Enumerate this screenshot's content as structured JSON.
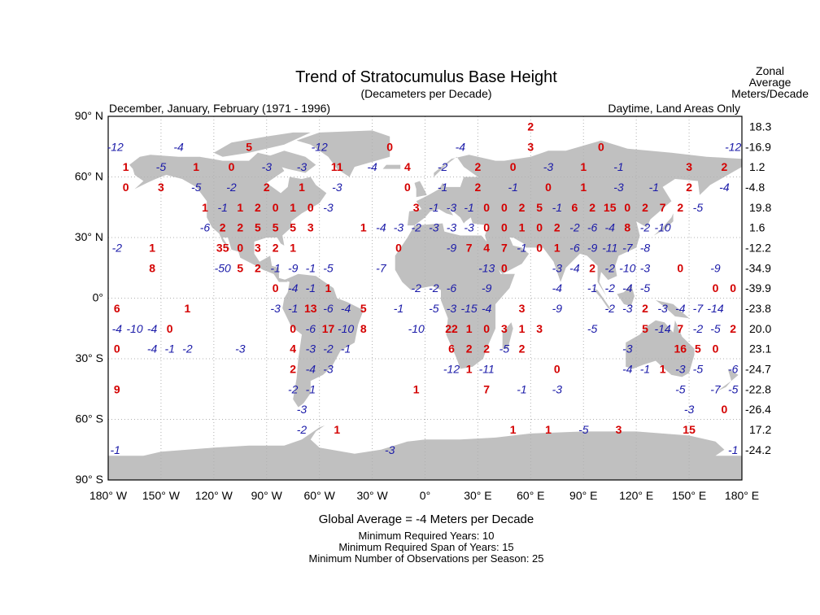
{
  "header": {
    "title": "Trend of Stratocumulus Base Height",
    "subtitle": "(Decameters per Decade)",
    "period": "December, January, February (1971 - 1996)",
    "scope": "Daytime, Land Areas Only",
    "zonal_header": [
      "Zonal",
      "Average",
      "Meters/Decade"
    ]
  },
  "footer": {
    "global_average": "Global Average = -4 Meters per Decade",
    "min_years": "Minimum Required Years: 10",
    "min_span": "Minimum Required Span of Years: 15",
    "min_obs": "Minimum Number of Observations per Season: 25"
  },
  "chart_data": {
    "type": "heatmap",
    "title": "Trend of Stratocumulus Base Height",
    "units": "(Decameters per Decade)",
    "xlim": [
      -180,
      180
    ],
    "ylim": [
      -90,
      90
    ],
    "grid": true,
    "x_ticks": [
      {
        "value": -180,
        "label": "180° W"
      },
      {
        "value": -150,
        "label": "150° W"
      },
      {
        "value": -120,
        "label": "120° W"
      },
      {
        "value": -90,
        "label": "90° W"
      },
      {
        "value": -60,
        "label": "60° W"
      },
      {
        "value": -30,
        "label": "30° W"
      },
      {
        "value": 0,
        "label": "0°"
      },
      {
        "value": 30,
        "label": "30° E"
      },
      {
        "value": 60,
        "label": "60° E"
      },
      {
        "value": 90,
        "label": "90° E"
      },
      {
        "value": 120,
        "label": "120° E"
      },
      {
        "value": 150,
        "label": "150° E"
      },
      {
        "value": 180,
        "label": "180° E"
      }
    ],
    "y_ticks": [
      {
        "value": 90,
        "label": "90° N"
      },
      {
        "value": 60,
        "label": "60° N"
      },
      {
        "value": 30,
        "label": "30° N"
      },
      {
        "value": 0,
        "label": "0°"
      },
      {
        "value": -30,
        "label": "30° S"
      },
      {
        "value": -60,
        "label": "60° S"
      },
      {
        "value": -90,
        "label": "90° S"
      }
    ],
    "colors": {
      "positive": "#d40000",
      "negative": "#1a1aa8",
      "land": "#c0c0c0",
      "grid": "#b0b0b0"
    },
    "rows": [
      {
        "lat": 85,
        "zonal_average": "18.3",
        "cells": [
          [
            60,
            2
          ]
        ]
      },
      {
        "lat": 75,
        "zonal_average": "-16.9",
        "cells": [
          [
            -176,
            -12
          ],
          [
            -140,
            -4
          ],
          [
            -100,
            5
          ],
          [
            -60,
            -12
          ],
          [
            -20,
            0
          ],
          [
            20,
            -4
          ],
          [
            60,
            3
          ],
          [
            100,
            0
          ],
          [
            175,
            -12
          ]
        ]
      },
      {
        "lat": 65,
        "zonal_average": "1.2",
        "cells": [
          [
            -170,
            1
          ],
          [
            -150,
            -5
          ],
          [
            -130,
            1
          ],
          [
            -110,
            0
          ],
          [
            -90,
            -3
          ],
          [
            -70,
            -3
          ],
          [
            -50,
            11
          ],
          [
            -30,
            -4
          ],
          [
            -10,
            4
          ],
          [
            10,
            -2
          ],
          [
            30,
            2
          ],
          [
            50,
            0
          ],
          [
            70,
            -3
          ],
          [
            90,
            1
          ],
          [
            110,
            -1
          ],
          [
            150,
            3
          ],
          [
            170,
            2
          ]
        ]
      },
      {
        "lat": 55,
        "zonal_average": "-4.8",
        "cells": [
          [
            -170,
            0
          ],
          [
            -150,
            3
          ],
          [
            -130,
            -5
          ],
          [
            -110,
            -2
          ],
          [
            -90,
            2
          ],
          [
            -70,
            1
          ],
          [
            -50,
            -3
          ],
          [
            -10,
            0
          ],
          [
            10,
            -1
          ],
          [
            30,
            2
          ],
          [
            50,
            -1
          ],
          [
            70,
            0
          ],
          [
            90,
            1
          ],
          [
            110,
            -3
          ],
          [
            130,
            -1
          ],
          [
            150,
            2
          ],
          [
            170,
            -4
          ]
        ]
      },
      {
        "lat": 45,
        "zonal_average": "19.8",
        "cells": [
          [
            -125,
            1
          ],
          [
            -115,
            -1
          ],
          [
            -105,
            1
          ],
          [
            -95,
            2
          ],
          [
            -85,
            0
          ],
          [
            -75,
            1
          ],
          [
            -65,
            0
          ],
          [
            -55,
            -3
          ],
          [
            -5,
            3
          ],
          [
            5,
            -1
          ],
          [
            15,
            -3
          ],
          [
            25,
            -1
          ],
          [
            35,
            0
          ],
          [
            45,
            0
          ],
          [
            55,
            2
          ],
          [
            65,
            5
          ],
          [
            75,
            -1
          ],
          [
            85,
            6
          ],
          [
            95,
            2
          ],
          [
            105,
            15
          ],
          [
            115,
            0
          ],
          [
            125,
            2
          ],
          [
            135,
            7
          ],
          [
            145,
            2
          ],
          [
            155,
            -5
          ]
        ]
      },
      {
        "lat": 35,
        "zonal_average": "1.6",
        "cells": [
          [
            -125,
            -6
          ],
          [
            -115,
            2
          ],
          [
            -105,
            2
          ],
          [
            -95,
            5
          ],
          [
            -85,
            5
          ],
          [
            -75,
            5
          ],
          [
            -65,
            3
          ],
          [
            -35,
            1
          ],
          [
            -25,
            -4
          ],
          [
            -15,
            -3
          ],
          [
            -5,
            -2
          ],
          [
            5,
            -3
          ],
          [
            15,
            -3
          ],
          [
            25,
            -3
          ],
          [
            35,
            0
          ],
          [
            45,
            0
          ],
          [
            55,
            1
          ],
          [
            65,
            0
          ],
          [
            75,
            2
          ],
          [
            85,
            -2
          ],
          [
            95,
            -6
          ],
          [
            105,
            -4
          ],
          [
            115,
            8
          ],
          [
            125,
            -2
          ],
          [
            135,
            -10
          ]
        ]
      },
      {
        "lat": 25,
        "zonal_average": "-12.2",
        "cells": [
          [
            -175,
            -2
          ],
          [
            -155,
            1
          ],
          [
            -115,
            35
          ],
          [
            -105,
            0
          ],
          [
            -95,
            3
          ],
          [
            -85,
            2
          ],
          [
            -75,
            1
          ],
          [
            -15,
            0
          ],
          [
            15,
            -9
          ],
          [
            25,
            7
          ],
          [
            35,
            4
          ],
          [
            45,
            7
          ],
          [
            55,
            -1
          ],
          [
            65,
            0
          ],
          [
            75,
            1
          ],
          [
            85,
            -6
          ],
          [
            95,
            -9
          ],
          [
            105,
            -11
          ],
          [
            115,
            -7
          ],
          [
            125,
            -8
          ]
        ]
      },
      {
        "lat": 15,
        "zonal_average": "-34.9",
        "cells": [
          [
            -155,
            8
          ],
          [
            -115,
            -50
          ],
          [
            -105,
            5
          ],
          [
            -95,
            2
          ],
          [
            -85,
            -1
          ],
          [
            -75,
            -9
          ],
          [
            -65,
            -1
          ],
          [
            -55,
            -5
          ],
          [
            -25,
            -7
          ],
          [
            35,
            -13
          ],
          [
            45,
            0
          ],
          [
            75,
            -3
          ],
          [
            85,
            -4
          ],
          [
            95,
            2
          ],
          [
            105,
            -2
          ],
          [
            115,
            -10
          ],
          [
            125,
            -3
          ],
          [
            145,
            0
          ],
          [
            165,
            -9
          ]
        ]
      },
      {
        "lat": 5,
        "zonal_average": "-39.9",
        "cells": [
          [
            -85,
            0
          ],
          [
            -75,
            -4
          ],
          [
            -65,
            -1
          ],
          [
            -55,
            1
          ],
          [
            -5,
            -2
          ],
          [
            5,
            -2
          ],
          [
            15,
            -6
          ],
          [
            35,
            -9
          ],
          [
            75,
            -4
          ],
          [
            95,
            -1
          ],
          [
            105,
            -2
          ],
          [
            115,
            -4
          ],
          [
            125,
            -5
          ],
          [
            165,
            0
          ],
          [
            175,
            0
          ]
        ]
      },
      {
        "lat": -5,
        "zonal_average": "-23.8",
        "cells": [
          [
            -175,
            6
          ],
          [
            -135,
            1
          ],
          [
            -85,
            -3
          ],
          [
            -75,
            -1
          ],
          [
            -65,
            13
          ],
          [
            -55,
            -6
          ],
          [
            -45,
            -4
          ],
          [
            -35,
            5
          ],
          [
            -15,
            -1
          ],
          [
            5,
            -5
          ],
          [
            15,
            -3
          ],
          [
            25,
            -15
          ],
          [
            35,
            -4
          ],
          [
            55,
            3
          ],
          [
            75,
            -9
          ],
          [
            105,
            -2
          ],
          [
            115,
            -3
          ],
          [
            125,
            2
          ],
          [
            135,
            -3
          ],
          [
            145,
            -4
          ],
          [
            155,
            -7
          ],
          [
            165,
            -14
          ]
        ]
      },
      {
        "lat": -15,
        "zonal_average": "20.0",
        "cells": [
          [
            -175,
            -4
          ],
          [
            -165,
            -10
          ],
          [
            -155,
            -4
          ],
          [
            -145,
            0
          ],
          [
            -75,
            0
          ],
          [
            -65,
            -6
          ],
          [
            -55,
            17
          ],
          [
            -45,
            -10
          ],
          [
            -35,
            8
          ],
          [
            -5,
            -10
          ],
          [
            15,
            22
          ],
          [
            25,
            1
          ],
          [
            35,
            0
          ],
          [
            45,
            3
          ],
          [
            55,
            1
          ],
          [
            65,
            3
          ],
          [
            95,
            -5
          ],
          [
            125,
            5
          ],
          [
            135,
            -14
          ],
          [
            145,
            7
          ],
          [
            155,
            -2
          ],
          [
            165,
            -5
          ],
          [
            175,
            2
          ]
        ]
      },
      {
        "lat": -25,
        "zonal_average": "23.1",
        "cells": [
          [
            -175,
            0
          ],
          [
            -155,
            -4
          ],
          [
            -145,
            -1
          ],
          [
            -135,
            -2
          ],
          [
            -105,
            -3
          ],
          [
            -75,
            4
          ],
          [
            -65,
            -3
          ],
          [
            -55,
            -2
          ],
          [
            -45,
            -1
          ],
          [
            15,
            6
          ],
          [
            25,
            2
          ],
          [
            35,
            2
          ],
          [
            45,
            -5
          ],
          [
            55,
            2
          ],
          [
            115,
            -3
          ],
          [
            145,
            16
          ],
          [
            155,
            5
          ],
          [
            165,
            0
          ]
        ]
      },
      {
        "lat": -35,
        "zonal_average": "-24.7",
        "cells": [
          [
            -75,
            2
          ],
          [
            -65,
            -4
          ],
          [
            -55,
            -3
          ],
          [
            15,
            -12
          ],
          [
            25,
            1
          ],
          [
            35,
            -11
          ],
          [
            75,
            0
          ],
          [
            115,
            -4
          ],
          [
            125,
            -1
          ],
          [
            135,
            1
          ],
          [
            145,
            -3
          ],
          [
            155,
            -5
          ],
          [
            175,
            -6
          ]
        ]
      },
      {
        "lat": -45,
        "zonal_average": "-22.8",
        "cells": [
          [
            -175,
            9
          ],
          [
            -75,
            -2
          ],
          [
            -65,
            -1
          ],
          [
            -5,
            1
          ],
          [
            35,
            7
          ],
          [
            55,
            -1
          ],
          [
            75,
            -3
          ],
          [
            145,
            -5
          ],
          [
            165,
            -7
          ],
          [
            175,
            -5
          ]
        ]
      },
      {
        "lat": -55,
        "zonal_average": "-26.4",
        "cells": [
          [
            -70,
            -3
          ],
          [
            150,
            -3
          ],
          [
            170,
            0
          ]
        ]
      },
      {
        "lat": -65,
        "zonal_average": "17.2",
        "cells": [
          [
            -70,
            -2
          ],
          [
            -50,
            1
          ],
          [
            50,
            1
          ],
          [
            70,
            1
          ],
          [
            90,
            -5
          ],
          [
            110,
            3
          ],
          [
            150,
            15
          ]
        ]
      },
      {
        "lat": -75,
        "zonal_average": "-24.2",
        "cells": [
          [
            -176,
            -1
          ],
          [
            -20,
            -3
          ],
          [
            175,
            -1
          ]
        ]
      }
    ]
  }
}
